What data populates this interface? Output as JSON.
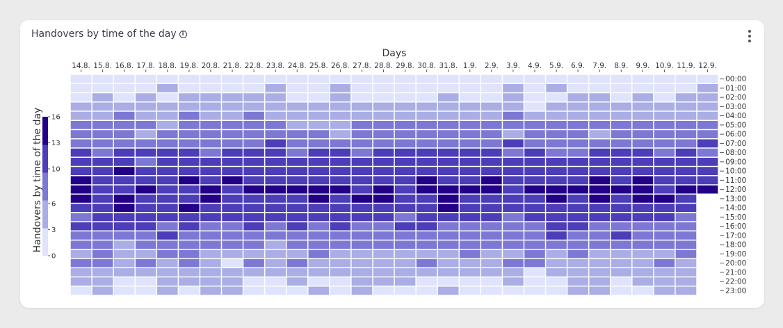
{
  "title": "Handovers by time of the day",
  "icons": {
    "info": "info-icon",
    "menu": "more-vertical-icon"
  },
  "chart_data": {
    "type": "heatmap",
    "xlabel": "Days",
    "ylabel": "Handovers by time of the day",
    "x": [
      "14.8.",
      "15.8.",
      "16.8.",
      "17.8.",
      "18.8.",
      "19.8.",
      "20.8.",
      "21.8.",
      "22.8.",
      "23.8.",
      "24.8.",
      "25.8.",
      "26.8.",
      "27.8.",
      "28.8.",
      "29.8.",
      "30.8.",
      "31.8.",
      "1.9.",
      "2.9.",
      "3.9.",
      "4.9.",
      "5.9.",
      "6.9.",
      "7.9.",
      "8.9.",
      "9.9.",
      "10.9.",
      "11.9.",
      "12.9."
    ],
    "y": [
      "00:00",
      "01:00",
      "02:00",
      "03:00",
      "04:00",
      "05:00",
      "06:00",
      "07:00",
      "08:00",
      "09:00",
      "10:00",
      "11:00",
      "12:00",
      "13:00",
      "14:00",
      "15:00",
      "16:00",
      "17:00",
      "18:00",
      "19:00",
      "20:00",
      "21:00",
      "22:00",
      "23:00"
    ],
    "colorbar": {
      "ticks": [
        0,
        3,
        6,
        10,
        13,
        16
      ],
      "range": [
        0,
        16
      ]
    },
    "colors": [
      "#dfe3fb",
      "#aaaee5",
      "#7c78d4",
      "#4c3db8",
      "#220088"
    ],
    "values": [
      [
        1,
        1,
        1,
        1,
        1,
        1,
        1,
        1,
        1,
        1,
        1,
        1,
        1,
        1,
        1,
        1,
        1,
        1,
        1,
        1,
        1,
        1,
        1,
        1,
        1,
        1,
        1,
        1,
        1,
        1
      ],
      [
        1,
        1,
        1,
        1,
        5,
        1,
        1,
        1,
        1,
        5,
        1,
        1,
        5,
        1,
        1,
        1,
        1,
        1,
        1,
        1,
        5,
        1,
        5,
        1,
        1,
        1,
        1,
        1,
        1,
        5
      ],
      [
        1,
        5,
        1,
        5,
        1,
        5,
        5,
        5,
        5,
        5,
        1,
        1,
        5,
        1,
        1,
        1,
        1,
        5,
        1,
        1,
        5,
        1,
        1,
        5,
        5,
        1,
        5,
        1,
        5,
        5
      ],
      [
        5,
        5,
        5,
        5,
        5,
        5,
        5,
        5,
        5,
        5,
        5,
        5,
        5,
        5,
        5,
        5,
        5,
        5,
        5,
        5,
        5,
        1,
        5,
        5,
        5,
        5,
        5,
        5,
        5,
        5
      ],
      [
        5,
        5,
        7,
        5,
        5,
        7,
        5,
        5,
        7,
        5,
        5,
        5,
        5,
        5,
        5,
        5,
        5,
        5,
        5,
        5,
        7,
        5,
        5,
        5,
        5,
        5,
        5,
        5,
        5,
        5
      ],
      [
        7,
        7,
        7,
        7,
        5,
        7,
        7,
        7,
        7,
        7,
        5,
        5,
        5,
        7,
        7,
        7,
        7,
        7,
        7,
        7,
        7,
        7,
        7,
        7,
        7,
        7,
        7,
        7,
        7,
        7
      ],
      [
        7,
        7,
        7,
        5,
        7,
        7,
        7,
        7,
        7,
        7,
        7,
        7,
        5,
        7,
        7,
        7,
        7,
        7,
        7,
        7,
        5,
        7,
        7,
        7,
        5,
        7,
        7,
        7,
        7,
        7
      ],
      [
        7,
        7,
        7,
        7,
        7,
        7,
        7,
        7,
        7,
        10,
        7,
        7,
        7,
        7,
        7,
        7,
        7,
        7,
        7,
        7,
        10,
        7,
        7,
        7,
        7,
        7,
        7,
        7,
        7,
        10
      ],
      [
        10,
        7,
        10,
        10,
        10,
        10,
        7,
        10,
        10,
        10,
        7,
        10,
        10,
        7,
        10,
        10,
        10,
        10,
        10,
        10,
        7,
        10,
        7,
        7,
        10,
        10,
        10,
        7,
        10,
        7
      ],
      [
        10,
        10,
        10,
        7,
        10,
        10,
        10,
        10,
        10,
        10,
        10,
        10,
        10,
        10,
        10,
        10,
        10,
        10,
        10,
        10,
        10,
        10,
        10,
        10,
        10,
        10,
        10,
        10,
        10,
        10
      ],
      [
        10,
        10,
        14,
        10,
        10,
        10,
        10,
        10,
        10,
        10,
        10,
        10,
        10,
        10,
        10,
        10,
        10,
        10,
        10,
        10,
        10,
        10,
        10,
        10,
        10,
        10,
        10,
        10,
        10,
        10
      ],
      [
        14,
        10,
        10,
        10,
        10,
        14,
        10,
        14,
        10,
        10,
        10,
        10,
        10,
        10,
        10,
        10,
        14,
        10,
        10,
        14,
        10,
        10,
        10,
        10,
        14,
        10,
        14,
        10,
        10,
        10
      ],
      [
        14,
        10,
        10,
        14,
        10,
        10,
        14,
        10,
        14,
        14,
        14,
        14,
        14,
        10,
        14,
        10,
        14,
        14,
        14,
        14,
        10,
        14,
        14,
        14,
        14,
        14,
        14,
        10,
        14,
        14
      ],
      [
        14,
        10,
        14,
        10,
        10,
        10,
        14,
        10,
        10,
        10,
        10,
        14,
        10,
        14,
        14,
        10,
        10,
        14,
        10,
        10,
        10,
        10,
        14,
        10,
        14,
        10,
        14,
        14,
        10,
        null
      ],
      [
        10,
        10,
        14,
        10,
        10,
        14,
        10,
        10,
        10,
        10,
        10,
        10,
        10,
        10,
        10,
        10,
        10,
        14,
        10,
        10,
        10,
        10,
        10,
        10,
        10,
        10,
        10,
        10,
        10,
        null
      ],
      [
        7,
        10,
        10,
        10,
        10,
        10,
        10,
        10,
        10,
        10,
        10,
        10,
        10,
        10,
        10,
        7,
        10,
        10,
        10,
        10,
        7,
        10,
        10,
        10,
        10,
        10,
        10,
        10,
        7,
        null
      ],
      [
        10,
        10,
        10,
        10,
        7,
        10,
        7,
        7,
        10,
        7,
        10,
        7,
        10,
        7,
        7,
        10,
        10,
        7,
        7,
        7,
        7,
        7,
        10,
        10,
        7,
        7,
        7,
        7,
        7,
        null
      ],
      [
        7,
        7,
        7,
        7,
        10,
        7,
        7,
        7,
        7,
        7,
        7,
        7,
        7,
        7,
        7,
        7,
        7,
        7,
        7,
        7,
        7,
        7,
        10,
        7,
        7,
        10,
        7,
        7,
        7,
        null
      ],
      [
        7,
        7,
        5,
        7,
        7,
        7,
        7,
        7,
        7,
        5,
        7,
        7,
        7,
        7,
        7,
        7,
        7,
        7,
        7,
        7,
        7,
        7,
        7,
        7,
        7,
        7,
        7,
        7,
        7,
        null
      ],
      [
        5,
        7,
        5,
        5,
        7,
        7,
        5,
        5,
        5,
        5,
        5,
        7,
        5,
        5,
        5,
        5,
        5,
        5,
        7,
        5,
        5,
        7,
        5,
        7,
        5,
        5,
        5,
        5,
        7,
        null
      ],
      [
        7,
        7,
        5,
        7,
        5,
        7,
        5,
        1,
        7,
        5,
        7,
        5,
        5,
        5,
        5,
        5,
        7,
        5,
        5,
        5,
        7,
        7,
        5,
        5,
        5,
        5,
        5,
        7,
        5,
        null
      ],
      [
        5,
        5,
        5,
        5,
        5,
        5,
        5,
        5,
        5,
        5,
        5,
        5,
        5,
        5,
        5,
        5,
        5,
        5,
        5,
        5,
        5,
        1,
        5,
        5,
        5,
        5,
        5,
        5,
        5,
        null
      ],
      [
        5,
        5,
        1,
        1,
        5,
        5,
        5,
        5,
        1,
        1,
        5,
        1,
        1,
        5,
        5,
        5,
        1,
        1,
        1,
        1,
        5,
        1,
        1,
        5,
        5,
        1,
        5,
        5,
        5,
        null
      ],
      [
        1,
        5,
        1,
        1,
        5,
        1,
        5,
        5,
        1,
        1,
        1,
        5,
        1,
        5,
        1,
        1,
        1,
        5,
        1,
        1,
        1,
        1,
        1,
        5,
        5,
        1,
        1,
        5,
        5,
        null
      ]
    ]
  }
}
